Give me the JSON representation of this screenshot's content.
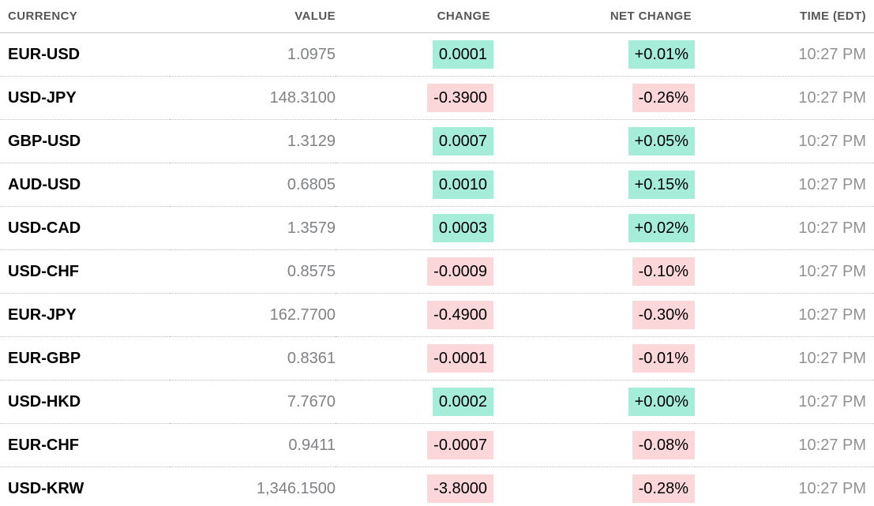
{
  "colors": {
    "background": "#ffffff",
    "positive_bg": "#a5edd8",
    "negative_bg": "#fbd7d9",
    "header_text": "#55565a",
    "pair_text": "#000000",
    "value_text": "#7f8184",
    "time_text": "#8f9193",
    "row_border": "#bdbec0",
    "header_border": "#c9cacc"
  },
  "table": {
    "columns": [
      {
        "id": "currency",
        "label": "CURRENCY"
      },
      {
        "id": "value",
        "label": "VALUE"
      },
      {
        "id": "change",
        "label": "CHANGE"
      },
      {
        "id": "net_change",
        "label": "NET CHANGE"
      },
      {
        "id": "time",
        "label": "TIME (EDT)"
      }
    ],
    "rows": [
      {
        "currency": "EUR-USD",
        "value": "1.0975",
        "change": "0.0001",
        "net_change": "+0.01%",
        "direction": "up",
        "time": "10:27 PM"
      },
      {
        "currency": "USD-JPY",
        "value": "148.3100",
        "change": "-0.3900",
        "net_change": "-0.26%",
        "direction": "down",
        "time": "10:27 PM"
      },
      {
        "currency": "GBP-USD",
        "value": "1.3129",
        "change": "0.0007",
        "net_change": "+0.05%",
        "direction": "up",
        "time": "10:27 PM"
      },
      {
        "currency": "AUD-USD",
        "value": "0.6805",
        "change": "0.0010",
        "net_change": "+0.15%",
        "direction": "up",
        "time": "10:27 PM"
      },
      {
        "currency": "USD-CAD",
        "value": "1.3579",
        "change": "0.0003",
        "net_change": "+0.02%",
        "direction": "up",
        "time": "10:27 PM"
      },
      {
        "currency": "USD-CHF",
        "value": "0.8575",
        "change": "-0.0009",
        "net_change": "-0.10%",
        "direction": "down",
        "time": "10:27 PM"
      },
      {
        "currency": "EUR-JPY",
        "value": "162.7700",
        "change": "-0.4900",
        "net_change": "-0.30%",
        "direction": "down",
        "time": "10:27 PM"
      },
      {
        "currency": "EUR-GBP",
        "value": "0.8361",
        "change": "-0.0001",
        "net_change": "-0.01%",
        "direction": "down",
        "time": "10:27 PM"
      },
      {
        "currency": "USD-HKD",
        "value": "7.7670",
        "change": "0.0002",
        "net_change": "+0.00%",
        "direction": "up",
        "time": "10:27 PM"
      },
      {
        "currency": "EUR-CHF",
        "value": "0.9411",
        "change": "-0.0007",
        "net_change": "-0.08%",
        "direction": "down",
        "time": "10:27 PM"
      },
      {
        "currency": "USD-KRW",
        "value": "1,346.1500",
        "change": "-3.8000",
        "net_change": "-0.28%",
        "direction": "down",
        "time": "10:27 PM"
      }
    ]
  }
}
